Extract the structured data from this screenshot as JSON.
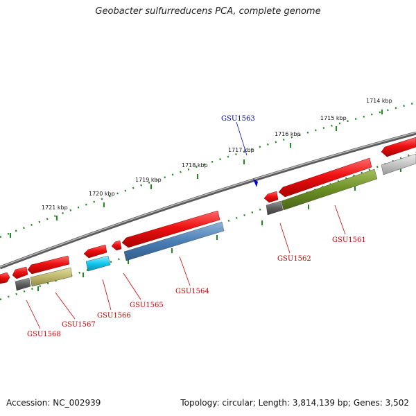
{
  "title": "Geobacter sulfurreducens PCA, complete genome",
  "footer": {
    "accession": "Accession: NC_002939",
    "topology": "Topology: circular; Length: 3,814,139 bp; Genes: 3,502"
  },
  "colors": {
    "backbone": "#888888",
    "forward_gene": "#ee1111",
    "tick": "#228822",
    "label_red": "#cc0000",
    "label_blue": "#0000cc"
  },
  "ticks": [
    {
      "label": "1714 kbp"
    },
    {
      "label": "1715 kbp"
    },
    {
      "label": "1716 kbp"
    },
    {
      "label": "1717 kbp"
    },
    {
      "label": "1718 kbp"
    },
    {
      "label": "1719 kbp"
    },
    {
      "label": "1720 kbp"
    },
    {
      "label": "1721 kbp"
    }
  ],
  "genes": [
    {
      "label": "GSU1561",
      "color": "#cc0000"
    },
    {
      "label": "GSU1562",
      "color": "#cc0000"
    },
    {
      "label": "GSU1563",
      "color": "#0000cc"
    },
    {
      "label": "GSU1564",
      "color": "#cc0000"
    },
    {
      "label": "GSU1565",
      "color": "#cc0000"
    },
    {
      "label": "GSU1566",
      "color": "#cc0000"
    },
    {
      "label": "GSU1567",
      "color": "#cc0000"
    },
    {
      "label": "GSU1568",
      "color": "#cc0000"
    }
  ]
}
